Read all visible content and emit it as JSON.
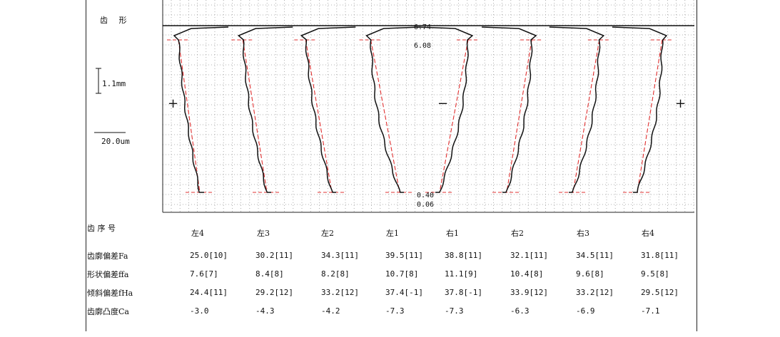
{
  "chart_data": {
    "type": "line",
    "title": "齿 形",
    "scale": {
      "vertical_label": "1.1mm",
      "horizontal_label": "20.0um"
    },
    "signs": {
      "left_plus": "+",
      "minus": "−",
      "right_plus": "+"
    },
    "annotations": {
      "top_a": "6.74",
      "top_b": "6.08",
      "bottom_a": "0.40",
      "bottom_b": "0.06"
    },
    "columns": [
      "左4",
      "左3",
      "左2",
      "左1",
      "右1",
      "右2",
      "右3",
      "右4"
    ],
    "header_label": "齿 序 号",
    "rows": [
      {
        "label": "齿廓偏差Fa",
        "values": [
          "25.0[10]",
          "30.2[11]",
          "34.3[11]",
          "39.5[11]",
          "38.8[11]",
          "32.1[11]",
          "34.5[11]",
          "31.8[11]"
        ]
      },
      {
        "label": "形状偏差ffa",
        "values": [
          "7.6[7]",
          "8.4[8]",
          "8.2[8]",
          "10.7[8]",
          "11.1[9]",
          "10.4[8]",
          "9.6[8]",
          "9.5[8]"
        ]
      },
      {
        "label": "倾斜偏差fHa",
        "values": [
          "24.4[11]",
          "29.2[12]",
          "33.2[12]",
          "37.4[-1]",
          "37.8[-1]",
          "33.9[12]",
          "33.2[12]",
          "29.5[12]"
        ]
      },
      {
        "label": "齿廓凸度Ca",
        "values": [
          "-3.0",
          "-4.3",
          "-4.2",
          "-7.3",
          "-7.3",
          "-6.3",
          "-6.9",
          "-7.1"
        ]
      }
    ],
    "series": [
      {
        "name": "左4",
        "side": "left",
        "Fa": 25.0,
        "Ca": -3.0
      },
      {
        "name": "左3",
        "side": "left",
        "Fa": 30.2,
        "Ca": -4.3
      },
      {
        "name": "左2",
        "side": "left",
        "Fa": 34.3,
        "Ca": -4.2
      },
      {
        "name": "左1",
        "side": "left",
        "Fa": 39.5,
        "Ca": -7.3
      },
      {
        "name": "右1",
        "side": "right",
        "Fa": 38.8,
        "Ca": -7.3
      },
      {
        "name": "右2",
        "side": "right",
        "Fa": 32.1,
        "Ca": -6.3
      },
      {
        "name": "右3",
        "side": "right",
        "Fa": 34.5,
        "Ca": -6.9
      },
      {
        "name": "右4",
        "side": "right",
        "Fa": 31.8,
        "Ca": -7.1
      }
    ],
    "colors": {
      "measured": "#111111",
      "reference": "#e03030",
      "grid": "#9a9a9a"
    },
    "grid": true
  }
}
